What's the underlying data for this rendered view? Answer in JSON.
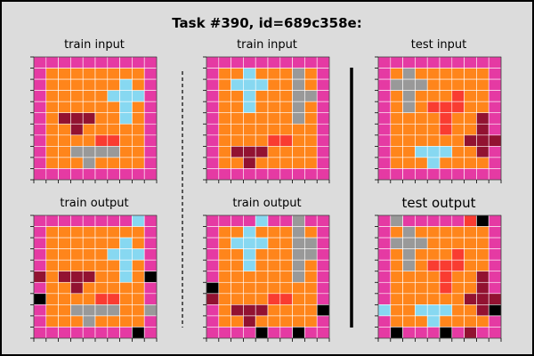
{
  "title": "Task #390, id=689c358e:",
  "colors": {
    "0": "#000000",
    "1": "#1e93ff",
    "2": "#f93c31",
    "3": "#4fcc30",
    "4": "#ffdc00",
    "5": "#999999",
    "6": "#e53aa3",
    "7": "#ff851b",
    "8": "#87d8f1",
    "9": "#921231",
    "grid_line": "#ffffff",
    "tick": "#000000",
    "background": "#dcdcdc"
  },
  "panels": [
    {
      "id": "train-input-1",
      "label": "train input",
      "grid": [
        "6666666666",
        "6777777776",
        "6777777876",
        "6777778886",
        "6777777876",
        "6799977876",
        "6779777776",
        "6777722776",
        "6775555776",
        "6777577776",
        "6666666666"
      ]
    },
    {
      "id": "train-input-2",
      "label": "train input",
      "grid": [
        "6666666666",
        "6778777576",
        "6788877576",
        "6778777556",
        "6778777576",
        "6777777576",
        "6777777776",
        "6777722776",
        "6799977776",
        "6779777776",
        "6666666666"
      ]
    },
    {
      "id": "test-input",
      "label": "test input",
      "grid": [
        "6666666666",
        "6757777776",
        "6555777776",
        "6757772776",
        "6757222776",
        "6777727796",
        "6777727796",
        "6777777999",
        "6778887796",
        "6777877776",
        "6666666666"
      ]
    },
    {
      "id": "train-output-1",
      "label": "train output",
      "grid": [
        "6666666686",
        "6777777776",
        "6777777876",
        "6777778886",
        "6777777876",
        "9799977870",
        "6779777776",
        "0777722776",
        "6775555775",
        "6777577776",
        "6666666606"
      ]
    },
    {
      "id": "train-output-2",
      "label": "train output",
      "grid": [
        "6666866566",
        "6778777576",
        "6788877556",
        "6778777556",
        "6778777576",
        "6777777576",
        "0777777776",
        "9777722776",
        "6799977770",
        "6779777776",
        "6666066066"
      ]
    },
    {
      "id": "test-output",
      "label": "test output",
      "grid": [
        "6566666206",
        "6757777776",
        "6555777776",
        "6757772776",
        "6757222776",
        "6777727796",
        "6777727796",
        "6777777999",
        "8778887790",
        "6777877776",
        "6066606966"
      ]
    }
  ]
}
